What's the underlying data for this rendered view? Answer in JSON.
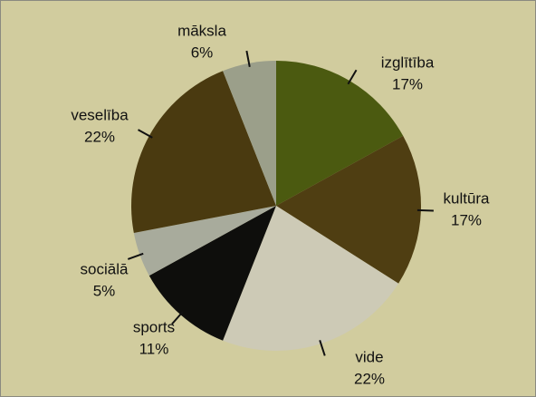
{
  "chart_data": {
    "type": "pie",
    "categories": [
      "izglītība",
      "kultūra",
      "vide",
      "sports",
      "sociālā",
      "veselība",
      "māksla"
    ],
    "values": [
      17,
      17,
      22,
      11,
      5,
      22,
      6
    ],
    "value_labels": [
      "17%",
      "17%",
      "22%",
      "11%",
      "5%",
      "22%",
      "6%"
    ],
    "colors": [
      "#4b5a10",
      "#4f3e12",
      "#cdcab6",
      "#0e0e0c",
      "#a8ab9c",
      "#4a3a10",
      "#9b9f8a"
    ]
  }
}
